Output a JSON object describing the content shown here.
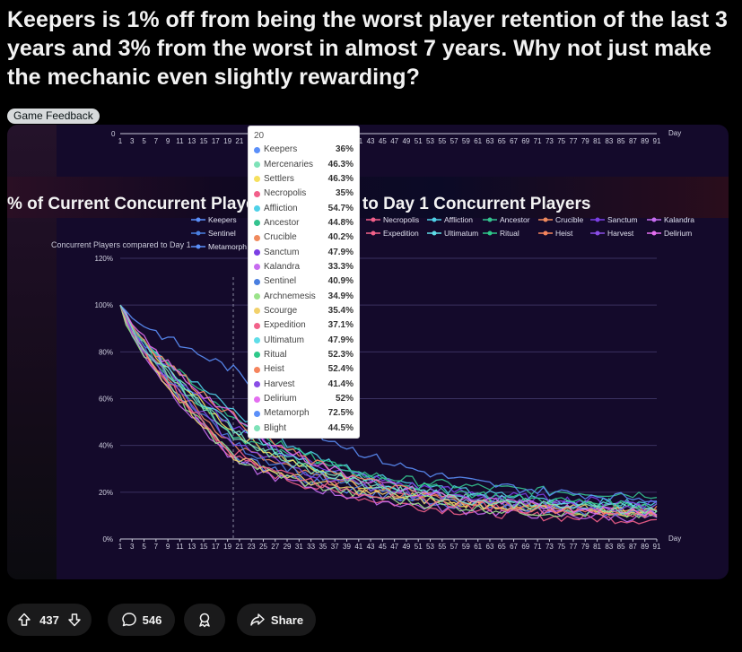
{
  "post": {
    "title": "Keepers is 1% off from being the worst player retention of the last 3 years and 3% from the worst in almost 7 years. Why not just make the mechanic even slightly rewarding?",
    "flair": "Game Feedback"
  },
  "chart_data": {
    "type": "line",
    "title": "% of Current Concurrent Players compared to Day 1 Concurrent Players",
    "ylabel": "Concurrent Players compared to Day 1",
    "xlabel": "Day",
    "ylim": [
      0,
      120
    ],
    "yticks": [
      "0%",
      "20%",
      "40%",
      "60%",
      "80%",
      "100%",
      "120%"
    ],
    "top_axis_zero": "0",
    "x_tick_labels": [
      "1",
      "3",
      "5",
      "7",
      "9",
      "11",
      "13",
      "15",
      "17",
      "19",
      "21",
      "23",
      "25",
      "27",
      "29",
      "31",
      "33",
      "35",
      "37",
      "39",
      "41",
      "43",
      "45",
      "47",
      "49",
      "51",
      "53",
      "55",
      "57",
      "59",
      "61",
      "63",
      "65",
      "67",
      "69",
      "71",
      "73",
      "75",
      "77",
      "79",
      "81",
      "83",
      "85",
      "87",
      "89",
      "91"
    ],
    "legend": [
      "Keepers",
      "Necropolis",
      "Affliction",
      "Ancestor",
      "Crucible",
      "Sanctum",
      "Kalandra",
      "Sentinel",
      "Expedition",
      "Ultimatum",
      "Ritual",
      "Heist",
      "Harvest",
      "Delirium",
      "Metamorph"
    ],
    "series": [
      {
        "name": "Keepers",
        "color": "#5b8ff9",
        "day_20": 36,
        "end": 10
      },
      {
        "name": "Mercenaries",
        "color": "#7ee2b8",
        "day_20": 46.3,
        "end": 12
      },
      {
        "name": "Settlers",
        "color": "#f6e05e",
        "day_20": 46.3,
        "end": 9
      },
      {
        "name": "Necropolis",
        "color": "#f25f8a",
        "day_20": 35,
        "end": 7
      },
      {
        "name": "Affliction",
        "color": "#4fd1e8",
        "day_20": 54.7,
        "end": 13
      },
      {
        "name": "Ancestor",
        "color": "#34c38f",
        "day_20": 44.8,
        "end": 18
      },
      {
        "name": "Crucible",
        "color": "#f08a5d",
        "day_20": 40.2,
        "end": 11
      },
      {
        "name": "Sanctum",
        "color": "#7b3fe4",
        "day_20": 47.9,
        "end": 14
      },
      {
        "name": "Kalandra",
        "color": "#c76cf0",
        "day_20": 33.3,
        "end": 8
      },
      {
        "name": "Sentinel",
        "color": "#4a7fe0",
        "day_20": 40.9,
        "end": 10
      },
      {
        "name": "Archnemesis",
        "color": "#9be38a",
        "day_20": 34.9,
        "end": 9
      },
      {
        "name": "Scourge",
        "color": "#f2d16b",
        "day_20": 35.4,
        "end": 11
      },
      {
        "name": "Expedition",
        "color": "#f2628a",
        "day_20": 37.1,
        "end": 10
      },
      {
        "name": "Ultimatum",
        "color": "#5fdde8",
        "day_20": 47.9,
        "end": 12
      },
      {
        "name": "Ritual",
        "color": "#2ec98a",
        "day_20": 52.3,
        "end": 13
      },
      {
        "name": "Heist",
        "color": "#f5845d",
        "day_20": 52.4,
        "end": 9
      },
      {
        "name": "Harvest",
        "color": "#8a4de6",
        "day_20": 41.4,
        "end": 12
      },
      {
        "name": "Delirium",
        "color": "#e36ef0",
        "day_20": 52,
        "end": 10
      },
      {
        "name": "Metamorph",
        "color": "#5b8ff9",
        "day_20": 72.5,
        "end": 15
      },
      {
        "name": "Blight",
        "color": "#7ee2b8",
        "day_20": 44.5,
        "end": 11
      }
    ],
    "tooltip": {
      "title": "20",
      "rows": [
        {
          "name": "Keepers",
          "value": "36%",
          "color": "#5b8ff9"
        },
        {
          "name": "Mercenaries",
          "value": "46.3%",
          "color": "#7ee2b8"
        },
        {
          "name": "Settlers",
          "value": "46.3%",
          "color": "#f6e05e"
        },
        {
          "name": "Necropolis",
          "value": "35%",
          "color": "#f25f8a"
        },
        {
          "name": "Affliction",
          "value": "54.7%",
          "color": "#4fd1e8"
        },
        {
          "name": "Ancestor",
          "value": "44.8%",
          "color": "#34c38f"
        },
        {
          "name": "Crucible",
          "value": "40.2%",
          "color": "#f08a5d"
        },
        {
          "name": "Sanctum",
          "value": "47.9%",
          "color": "#7b3fe4"
        },
        {
          "name": "Kalandra",
          "value": "33.3%",
          "color": "#c76cf0"
        },
        {
          "name": "Sentinel",
          "value": "40.9%",
          "color": "#4a7fe0"
        },
        {
          "name": "Archnemesis",
          "value": "34.9%",
          "color": "#9be38a"
        },
        {
          "name": "Scourge",
          "value": "35.4%",
          "color": "#f2d16b"
        },
        {
          "name": "Expedition",
          "value": "37.1%",
          "color": "#f2628a"
        },
        {
          "name": "Ultimatum",
          "value": "47.9%",
          "color": "#5fdde8"
        },
        {
          "name": "Ritual",
          "value": "52.3%",
          "color": "#2ec98a"
        },
        {
          "name": "Heist",
          "value": "52.4%",
          "color": "#f5845d"
        },
        {
          "name": "Harvest",
          "value": "41.4%",
          "color": "#8a4de6"
        },
        {
          "name": "Delirium",
          "value": "52%",
          "color": "#e36ef0"
        },
        {
          "name": "Metamorph",
          "value": "72.5%",
          "color": "#5b8ff9"
        },
        {
          "name": "Blight",
          "value": "44.5%",
          "color": "#7ee2b8"
        }
      ]
    }
  },
  "actions": {
    "upvotes": "437",
    "comments": "546",
    "share": "Share"
  }
}
